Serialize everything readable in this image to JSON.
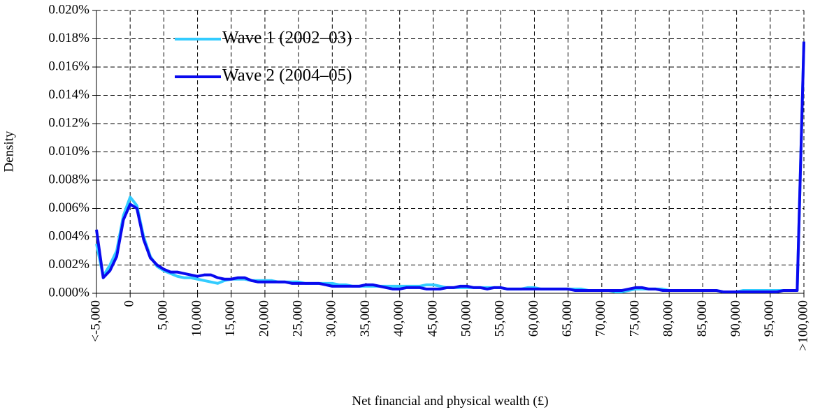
{
  "chart_data": {
    "type": "line",
    "x_label": "Net financial and physical wealth (£)",
    "y_label": "Density",
    "x": [
      -5000,
      -4000,
      -3000,
      -2000,
      -1000,
      0,
      1000,
      2000,
      3000,
      4000,
      5000,
      6000,
      7000,
      8000,
      9000,
      10000,
      11000,
      12000,
      13000,
      14000,
      15000,
      16000,
      17000,
      18000,
      19000,
      20000,
      21000,
      22000,
      23000,
      24000,
      25000,
      26000,
      27000,
      28000,
      29000,
      30000,
      31000,
      32000,
      33000,
      34000,
      35000,
      36000,
      37000,
      38000,
      39000,
      40000,
      41000,
      42000,
      43000,
      44000,
      45000,
      46000,
      47000,
      48000,
      49000,
      50000,
      51000,
      52000,
      53000,
      54000,
      55000,
      56000,
      57000,
      58000,
      59000,
      60000,
      61000,
      62000,
      63000,
      64000,
      65000,
      66000,
      67000,
      68000,
      69000,
      70000,
      71000,
      72000,
      73000,
      74000,
      75000,
      76000,
      77000,
      78000,
      79000,
      80000,
      81000,
      82000,
      83000,
      84000,
      85000,
      86000,
      87000,
      88000,
      89000,
      90000,
      91000,
      92000,
      93000,
      94000,
      95000,
      96000,
      97000,
      98000,
      99000,
      100000
    ],
    "series": [
      {
        "name": "Wave 1 (2002–03)",
        "color": "#33ccff",
        "values": [
          0.0035,
          0.0012,
          0.002,
          0.003,
          0.0055,
          0.0068,
          0.0062,
          0.004,
          0.0026,
          0.0019,
          0.0016,
          0.0014,
          0.0012,
          0.0011,
          0.0011,
          0.001,
          0.0009,
          0.0008,
          0.0007,
          0.0009,
          0.001,
          0.001,
          0.001,
          0.0009,
          0.0009,
          0.0009,
          0.0009,
          0.0008,
          0.0008,
          0.0008,
          0.0008,
          0.0007,
          0.0007,
          0.0007,
          0.0007,
          0.0007,
          0.0006,
          0.0006,
          0.0005,
          0.0005,
          0.0005,
          0.0005,
          0.0005,
          0.0005,
          0.0005,
          0.0005,
          0.0005,
          0.0005,
          0.0005,
          0.0006,
          0.0006,
          0.0005,
          0.0004,
          0.0004,
          0.0004,
          0.0004,
          0.0004,
          0.0004,
          0.0004,
          0.0004,
          0.0004,
          0.0003,
          0.0003,
          0.0003,
          0.0004,
          0.0004,
          0.0003,
          0.0003,
          0.0003,
          0.0003,
          0.0003,
          0.0003,
          0.0003,
          0.0002,
          0.0002,
          0.0002,
          0.0002,
          0.0001,
          0.0001,
          0.0002,
          0.0003,
          0.0003,
          0.0003,
          0.0003,
          0.0003,
          0.0002,
          0.0002,
          0.0002,
          0.0002,
          0.0002,
          0.0002,
          0.0002,
          0.0002,
          0.0001,
          0.0001,
          0.0001,
          0.0002,
          0.0002,
          0.0002,
          0.0002,
          0.0002,
          0.0002,
          0.0002,
          0.0002,
          0.0002,
          0.0178
        ]
      },
      {
        "name": "Wave 2 (2004–05)",
        "color": "#0a0aee",
        "values": [
          0.0045,
          0.0011,
          0.0016,
          0.0026,
          0.0052,
          0.0063,
          0.006,
          0.0038,
          0.0025,
          0.002,
          0.0017,
          0.0015,
          0.0015,
          0.0014,
          0.0013,
          0.0012,
          0.0013,
          0.0013,
          0.0011,
          0.001,
          0.001,
          0.0011,
          0.0011,
          0.0009,
          0.0008,
          0.0008,
          0.0008,
          0.0008,
          0.0008,
          0.0007,
          0.0007,
          0.0007,
          0.0007,
          0.0007,
          0.0006,
          0.0005,
          0.0005,
          0.0005,
          0.0005,
          0.0005,
          0.0006,
          0.0006,
          0.0005,
          0.0004,
          0.0003,
          0.0003,
          0.0004,
          0.0004,
          0.0004,
          0.0003,
          0.0003,
          0.0003,
          0.0004,
          0.0004,
          0.0005,
          0.0005,
          0.0004,
          0.0004,
          0.0003,
          0.0004,
          0.0004,
          0.0003,
          0.0003,
          0.0003,
          0.0003,
          0.0003,
          0.0003,
          0.0003,
          0.0003,
          0.0003,
          0.0003,
          0.0002,
          0.0002,
          0.0002,
          0.0002,
          0.0002,
          0.0002,
          0.0002,
          0.0002,
          0.0003,
          0.0004,
          0.0004,
          0.0003,
          0.0003,
          0.0002,
          0.0002,
          0.0002,
          0.0002,
          0.0002,
          0.0002,
          0.0002,
          0.0002,
          0.0002,
          0.0001,
          0.0001,
          0.0001,
          0.0001,
          0.0001,
          0.0001,
          0.0001,
          0.0001,
          0.0001,
          0.0002,
          0.0002,
          0.0002,
          0.0178
        ]
      }
    ],
    "xlim": [
      -5000,
      100000
    ],
    "xticks": [
      {
        "value": -5000,
        "label": "<-5,000"
      },
      0,
      {
        "value": 5000,
        "label": "5,000"
      },
      {
        "value": 10000,
        "label": "10,000"
      },
      {
        "value": 15000,
        "label": "15,000"
      },
      {
        "value": 20000,
        "label": "20,000"
      },
      {
        "value": 25000,
        "label": "25,000"
      },
      {
        "value": 30000,
        "label": "30,000"
      },
      {
        "value": 35000,
        "label": "35,000"
      },
      {
        "value": 40000,
        "label": "40,000"
      },
      {
        "value": 45000,
        "label": "45,000"
      },
      {
        "value": 50000,
        "label": "50,000"
      },
      {
        "value": 55000,
        "label": "55,000"
      },
      {
        "value": 60000,
        "label": "60,000"
      },
      {
        "value": 65000,
        "label": "65,000"
      },
      {
        "value": 70000,
        "label": "70,000"
      },
      {
        "value": 75000,
        "label": "75,000"
      },
      {
        "value": 80000,
        "label": "80,000"
      },
      {
        "value": 85000,
        "label": "85,000"
      },
      {
        "value": 90000,
        "label": "90,000"
      },
      {
        "value": 95000,
        "label": "95,000"
      },
      {
        "value": 100000,
        "label": ">100,000"
      }
    ],
    "ylim": [
      0,
      0.02
    ],
    "yticks": [
      {
        "value": 0,
        "label": "0.000%"
      },
      {
        "value": 0.002,
        "label": "0.002%"
      },
      {
        "value": 0.004,
        "label": "0.004%"
      },
      {
        "value": 0.006,
        "label": "0.006%"
      },
      {
        "value": 0.008,
        "label": "0.008%"
      },
      {
        "value": 0.01,
        "label": "0.010%"
      },
      {
        "value": 0.012,
        "label": "0.012%"
      },
      {
        "value": 0.014,
        "label": "0.014%"
      },
      {
        "value": 0.016,
        "label": "0.016%"
      },
      {
        "value": 0.018,
        "label": "0.018%"
      },
      {
        "value": 0.02,
        "label": "0.020%"
      }
    ],
    "grid": true,
    "legend_position": "upper left"
  }
}
